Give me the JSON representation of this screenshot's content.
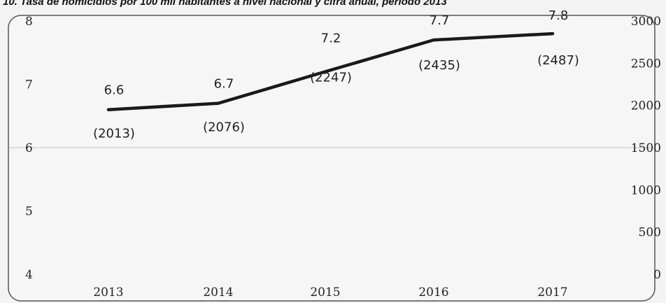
{
  "title": "10. Tasa de homicidios por 100 mil habitantes a nivel nacional y cifra anual, período 2013",
  "chart_data": {
    "type": "line",
    "title": "10. Tasa de homicidios por 100 mil habitantes a nivel nacional y cifra anual, período 2013",
    "categories": [
      "2013",
      "2014",
      "2015",
      "2016",
      "2017"
    ],
    "series": [
      {
        "values": [
          6.6,
          6.7,
          7.2,
          7.7,
          7.8
        ],
        "axis": "left"
      }
    ],
    "annual_counts": [
      2013,
      2076,
      2247,
      2435,
      2487
    ],
    "value_labels": [
      "6.6",
      "6.7",
      "7.2",
      "7.7",
      "7.8"
    ],
    "count_labels": [
      "(2013)",
      "(2076)",
      "(2247)",
      "(2435)",
      "(2487)"
    ],
    "left_axis": {
      "ticks": [
        "8",
        "7",
        "6",
        "5",
        "4"
      ],
      "ylim": [
        4,
        8
      ]
    },
    "right_axis": {
      "ticks": [
        "3000",
        "2500",
        "2000",
        "1500",
        "1000",
        "500",
        "0"
      ],
      "ylim": [
        0,
        3000
      ]
    },
    "xlabel": "",
    "ylabel": "",
    "grid": "single horizontal line at 6",
    "line_color": "#1a1a1a"
  }
}
